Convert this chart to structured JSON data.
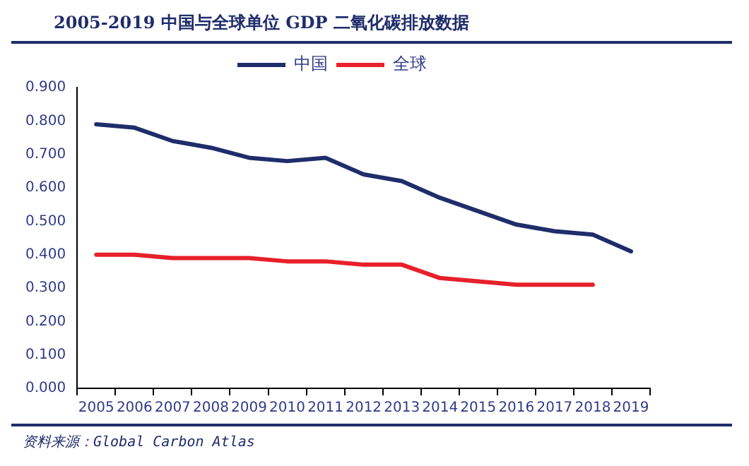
{
  "chart_data": {
    "type": "line",
    "title": "2005-2019 中国与全球单位 GDP 二氧化碳排放数据",
    "categories": [
      "2005",
      "2006",
      "2007",
      "2008",
      "2009",
      "2010",
      "2011",
      "2012",
      "2013",
      "2014",
      "2015",
      "2016",
      "2017",
      "2018",
      "2019"
    ],
    "series": [
      {
        "name": "中国",
        "color": "#1f2d6b",
        "values": [
          0.79,
          0.78,
          0.74,
          0.72,
          0.69,
          0.68,
          0.69,
          0.64,
          0.62,
          0.57,
          0.53,
          0.49,
          0.47,
          0.46,
          0.41
        ]
      },
      {
        "name": "全球",
        "color": "#e8202a",
        "values": [
          0.4,
          0.4,
          0.39,
          0.39,
          0.39,
          0.38,
          0.38,
          0.37,
          0.37,
          0.33,
          0.32,
          0.31,
          0.31,
          0.31,
          null
        ]
      }
    ],
    "ylim": [
      0,
      0.9
    ],
    "yticks": [
      {
        "value": 0,
        "label": "0.000"
      },
      {
        "value": 0.1,
        "label": "0.100"
      },
      {
        "value": 0.2,
        "label": "0.200"
      },
      {
        "value": 0.3,
        "label": "0.300"
      },
      {
        "value": 0.4,
        "label": "0.400"
      },
      {
        "value": 0.5,
        "label": "0.500"
      },
      {
        "value": 0.6,
        "label": "0.600"
      },
      {
        "value": 0.7,
        "label": "0.700"
      },
      {
        "value": 0.8,
        "label": "0.800"
      },
      {
        "value": 0.9,
        "label": "0.900"
      }
    ],
    "grid": false,
    "legend": "top",
    "marker": "none",
    "line_style": "solid",
    "annotations": [
      "资料来源：Global Carbon Atlas"
    ]
  }
}
